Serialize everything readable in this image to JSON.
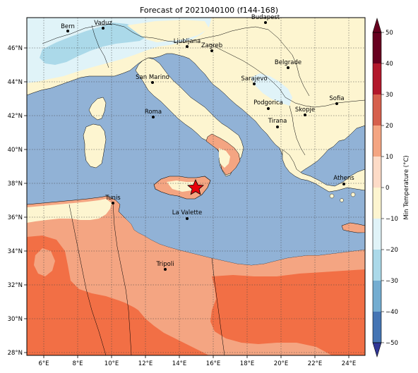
{
  "title": "Forecast of 2021040100 (f144-168)",
  "colorbar": {
    "label": "Min Temperature (°C)",
    "ticks": [
      "50",
      "40",
      "30",
      "20",
      "10",
      "0",
      "−10",
      "−20",
      "−30",
      "−40",
      "−50"
    ],
    "colors": [
      "#67001f",
      "#b2182b",
      "#d6604d",
      "#f4a582",
      "#fddbc7",
      "#fdf5d0",
      "#e0f3f8",
      "#abd9e9",
      "#74add1",
      "#4575b4",
      "#313695"
    ]
  },
  "axes": {
    "x_ticks": [
      "6°E",
      "8°E",
      "10°E",
      "12°E",
      "14°E",
      "16°E",
      "18°E",
      "20°E",
      "22°E",
      "24°E"
    ],
    "y_ticks": [
      "46°N",
      "44°N",
      "42°N",
      "40°N",
      "38°N",
      "36°N",
      "34°N",
      "32°N",
      "30°N",
      "28°N"
    ]
  },
  "cities": [
    {
      "name": "Bern"
    },
    {
      "name": "Vaduz"
    },
    {
      "name": "Budapest"
    },
    {
      "name": "Ljubljana"
    },
    {
      "name": "Zagreb"
    },
    {
      "name": "Belgrade"
    },
    {
      "name": "San Marino"
    },
    {
      "name": "Sarajevo"
    },
    {
      "name": "Sofia"
    },
    {
      "name": "Podgorica"
    },
    {
      "name": "Skopje"
    },
    {
      "name": "Roma"
    },
    {
      "name": "Tirana"
    },
    {
      "name": "Athens"
    },
    {
      "name": "Tunis"
    },
    {
      "name": "La Valette"
    },
    {
      "name": "Tripoli"
    }
  ],
  "map_colors": {
    "sea": "#91b2d6",
    "land_mild": "#fdf5d0",
    "land_cold": "#e0f3f8",
    "land_colder": "#abd9e9",
    "land_warm": "#f4a582",
    "land_hot": "#f26f45",
    "land_pale_warm": "#fddbc7"
  }
}
